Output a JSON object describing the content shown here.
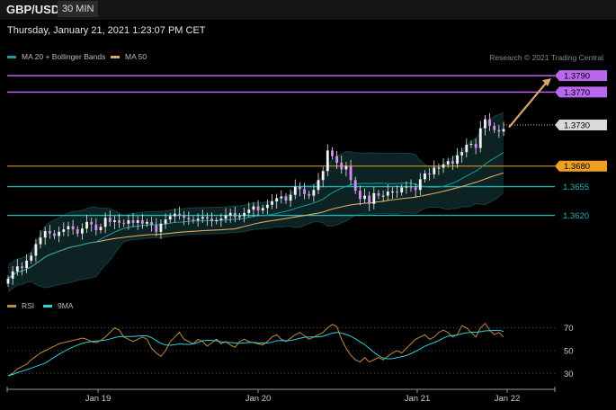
{
  "header": {
    "symbol": "GBP/USD",
    "timeframe": "30 MIN"
  },
  "datetime": "Thursday, January 21, 2021 1:23:07 PM CET",
  "legend": {
    "bb": {
      "label": "MA 20 + Bollinger Bands",
      "color": "#1a9c9c"
    },
    "ma50": {
      "label": "MA 50",
      "color": "#e0a860"
    }
  },
  "credit": "Research © 2021 Trading Central",
  "rsi_legend": {
    "rsi": {
      "label": "RSI",
      "color": "#c08a3a"
    },
    "ma9": {
      "label": "9MA",
      "color": "#2fd0d8"
    }
  },
  "chart_data": {
    "type": "candlestick",
    "symbol": "GBP/USD",
    "timeframe": "30 MIN",
    "ylim": [
      1.352,
      1.38
    ],
    "x_ticks": [
      "Jan 19",
      "Jan 20",
      "Jan 21",
      "Jan 22"
    ],
    "price_levels": [
      {
        "value": "1.3790",
        "kind": "target",
        "color": "#cc66ff"
      },
      {
        "value": "1.3770",
        "kind": "resistance",
        "color": "#cc66ff"
      },
      {
        "value": "1.3730",
        "kind": "current",
        "color": "#cccccc"
      },
      {
        "value": "1.3680",
        "kind": "pivot",
        "color": "#f0a020"
      },
      {
        "value": "1.3655",
        "kind": "support",
        "color": "#1ab5b5"
      },
      {
        "value": "1.3620",
        "kind": "support",
        "color": "#1ab5b5"
      }
    ],
    "closes": [
      1.3543,
      1.3552,
      1.3558,
      1.3556,
      1.3565,
      1.3571,
      1.3585,
      1.3593,
      1.3601,
      1.3598,
      1.3595,
      1.36,
      1.3603,
      1.3607,
      1.3603,
      1.3598,
      1.3604,
      1.3612,
      1.3609,
      1.3602,
      1.3606,
      1.3617,
      1.3612,
      1.3614,
      1.3611,
      1.361,
      1.3614,
      1.3611,
      1.3614,
      1.361,
      1.3612,
      1.3608,
      1.36,
      1.361,
      1.3615,
      1.3619,
      1.3622,
      1.362,
      1.3617,
      1.3615,
      1.3614,
      1.3616,
      1.3618,
      1.3616,
      1.3613,
      1.3614,
      1.3616,
      1.362,
      1.3623,
      1.3618,
      1.3619,
      1.3623,
      1.3627,
      1.3631,
      1.3626,
      1.3629,
      1.3633,
      1.3637,
      1.3641,
      1.3643,
      1.3638,
      1.3645,
      1.3655,
      1.3652,
      1.3646,
      1.3644,
      1.3651,
      1.3663,
      1.3674,
      1.3699,
      1.3692,
      1.3684,
      1.3676,
      1.368,
      1.3663,
      1.365,
      1.364,
      1.3644,
      1.3634,
      1.3647,
      1.3644,
      1.3644,
      1.3649,
      1.3649,
      1.3648,
      1.3654,
      1.3655,
      1.3654,
      1.3651,
      1.3664,
      1.3671,
      1.367,
      1.3678,
      1.3678,
      1.3682,
      1.3686,
      1.3683,
      1.3693,
      1.3697,
      1.3706,
      1.3707,
      1.3702,
      1.3726,
      1.3737,
      1.3729,
      1.3724,
      1.3722,
      1.3725
    ],
    "rsi": {
      "levels": [
        70,
        50,
        30
      ],
      "ylim": [
        20,
        80
      ],
      "values": [
        28,
        30,
        34,
        36,
        38,
        42,
        45,
        48,
        50,
        52,
        54,
        56,
        57,
        58,
        59,
        60,
        61,
        60,
        58,
        57,
        59,
        62,
        66,
        70,
        68,
        62,
        60,
        58,
        60,
        62,
        60,
        52,
        48,
        45,
        50,
        58,
        62,
        66,
        60,
        58,
        56,
        60,
        58,
        54,
        57,
        60,
        56,
        58,
        55,
        53,
        58,
        60,
        58,
        57,
        56,
        55,
        58,
        62,
        64,
        60,
        58,
        61,
        64,
        66,
        63,
        60,
        62,
        64,
        66,
        70,
        73,
        71,
        60,
        52,
        46,
        42,
        40,
        44,
        40,
        42,
        44,
        42,
        45,
        48,
        50,
        48,
        52,
        56,
        60,
        62,
        64,
        60,
        62,
        66,
        68,
        66,
        62,
        64,
        72,
        70,
        66,
        62,
        70,
        74,
        68,
        64,
        66,
        62
      ]
    }
  }
}
